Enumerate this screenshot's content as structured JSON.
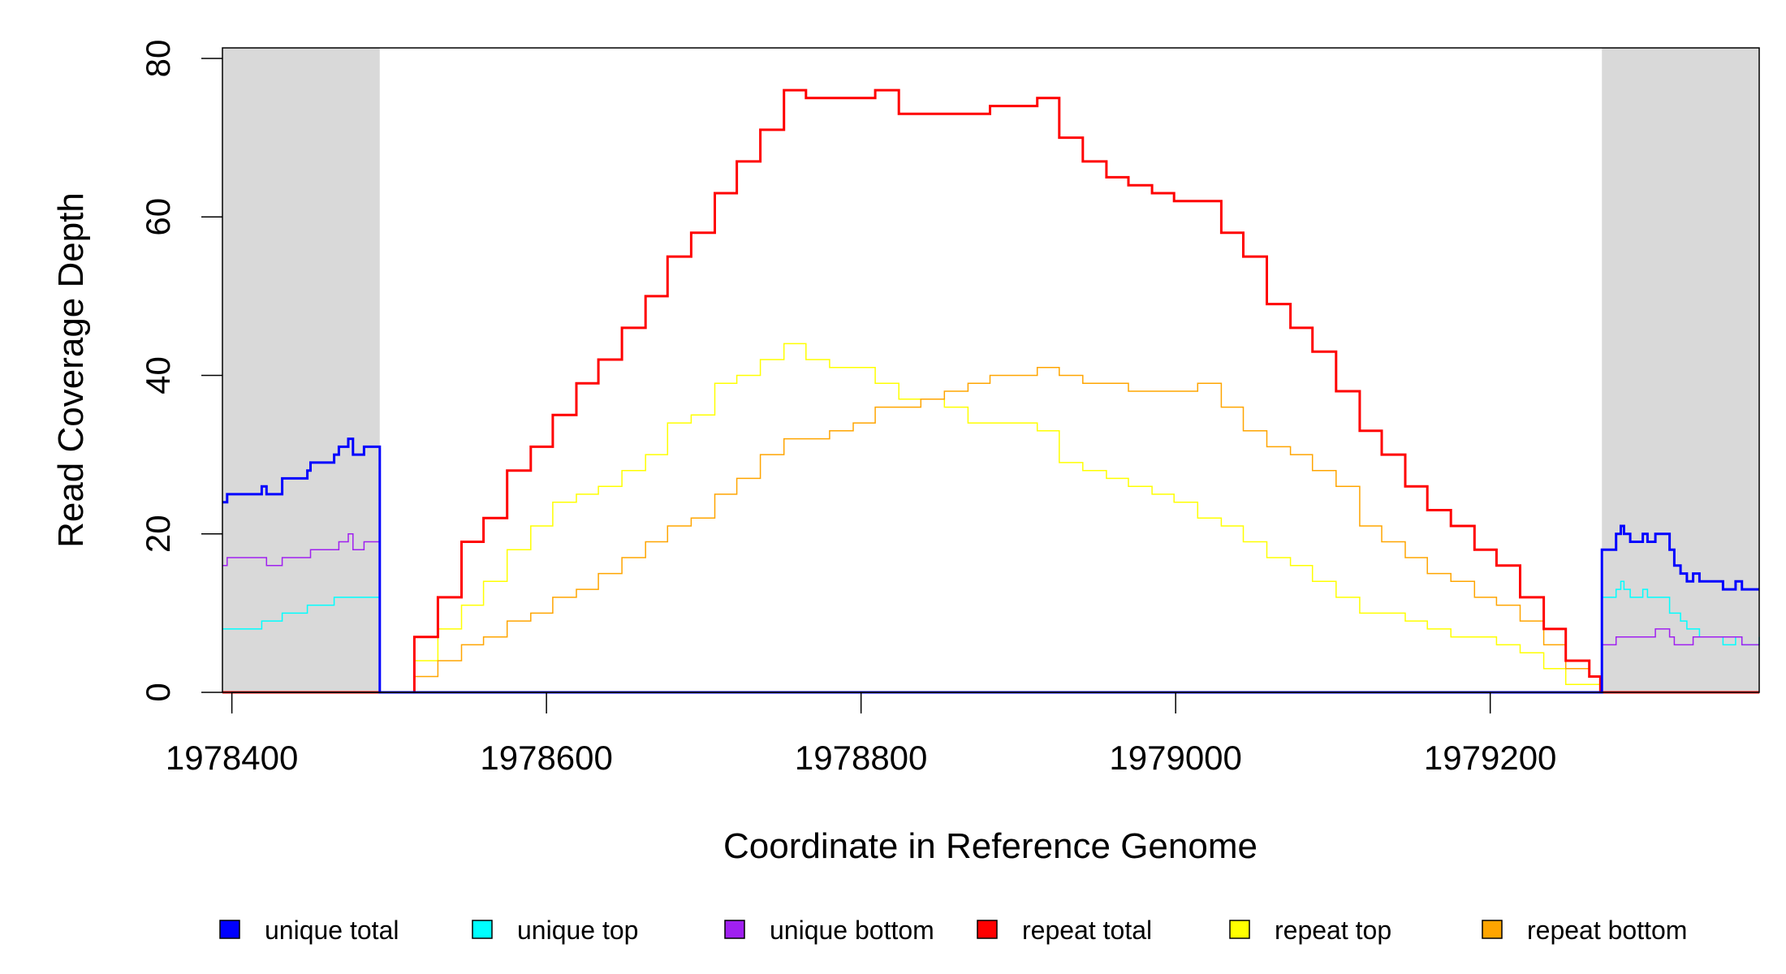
{
  "chart_data": {
    "type": "line",
    "title": "",
    "xlabel": "Coordinate in Reference Genome",
    "ylabel": "Read Coverage Depth",
    "xlim": [
      1978394,
      1979371
    ],
    "ylim": [
      0,
      80
    ],
    "x_ticks": [
      1978400,
      1978600,
      1978800,
      1979000,
      1979200
    ],
    "x_tick_labels": [
      "1978400",
      "1978600",
      "1978800",
      "1979000",
      "1979200"
    ],
    "y_ticks": [
      0,
      20,
      40,
      60,
      80
    ],
    "y_tick_labels": [
      "0",
      "20",
      "40",
      "60",
      "80"
    ],
    "grid": false,
    "legend_position": "bottom",
    "shaded_regions": [
      [
        1978394,
        1978494
      ],
      [
        1979271,
        1979371
      ]
    ],
    "colors": {
      "shade": "#d9d9d9"
    },
    "series": [
      {
        "name": "unique total",
        "color": "#0000ff",
        "width": 3,
        "points": [
          [
            1978394,
            24
          ],
          [
            1978397,
            25
          ],
          [
            1978419,
            26
          ],
          [
            1978422,
            25
          ],
          [
            1978432,
            27
          ],
          [
            1978448,
            28
          ],
          [
            1978450,
            29
          ],
          [
            1978465,
            30
          ],
          [
            1978468,
            31
          ],
          [
            1978474,
            32
          ],
          [
            1978477,
            30
          ],
          [
            1978484,
            31
          ],
          [
            1978494,
            0
          ],
          [
            1979271,
            18
          ],
          [
            1979280,
            20
          ],
          [
            1979283,
            21
          ],
          [
            1979285,
            20
          ],
          [
            1979289,
            19
          ],
          [
            1979297,
            20
          ],
          [
            1979300,
            19
          ],
          [
            1979305,
            20
          ],
          [
            1979314,
            18
          ],
          [
            1979317,
            16
          ],
          [
            1979321,
            15
          ],
          [
            1979325,
            14
          ],
          [
            1979329,
            15
          ],
          [
            1979333,
            14
          ],
          [
            1979348,
            13
          ],
          [
            1979356,
            14
          ],
          [
            1979360,
            13
          ],
          [
            1979371,
            13
          ]
        ]
      },
      {
        "name": "unique top",
        "color": "#00ffff",
        "width": 1.5,
        "points": [
          [
            1978394,
            8
          ],
          [
            1978419,
            9
          ],
          [
            1978432,
            10
          ],
          [
            1978448,
            11
          ],
          [
            1978465,
            12
          ],
          [
            1978494,
            0
          ],
          [
            1979271,
            12
          ],
          [
            1979280,
            13
          ],
          [
            1979283,
            14
          ],
          [
            1979285,
            13
          ],
          [
            1979289,
            12
          ],
          [
            1979297,
            13
          ],
          [
            1979300,
            12
          ],
          [
            1979314,
            10
          ],
          [
            1979321,
            9
          ],
          [
            1979325,
            8
          ],
          [
            1979333,
            7
          ],
          [
            1979348,
            6
          ],
          [
            1979356,
            7
          ],
          [
            1979360,
            6
          ],
          [
            1979371,
            7
          ]
        ]
      },
      {
        "name": "unique bottom",
        "color": "#a020f0",
        "width": 1.5,
        "points": [
          [
            1978394,
            16
          ],
          [
            1978397,
            17
          ],
          [
            1978422,
            16
          ],
          [
            1978432,
            17
          ],
          [
            1978450,
            18
          ],
          [
            1978468,
            19
          ],
          [
            1978474,
            20
          ],
          [
            1978477,
            18
          ],
          [
            1978484,
            19
          ],
          [
            1978494,
            0
          ],
          [
            1979271,
            6
          ],
          [
            1979280,
            7
          ],
          [
            1979305,
            8
          ],
          [
            1979314,
            7
          ],
          [
            1979317,
            6
          ],
          [
            1979329,
            7
          ],
          [
            1979360,
            6
          ],
          [
            1979371,
            6
          ]
        ]
      },
      {
        "name": "repeat total",
        "color": "#ff0000",
        "width": 3,
        "points": [
          [
            1978394,
            0
          ],
          [
            1978505,
            0
          ],
          [
            1978516,
            7
          ],
          [
            1978531,
            12
          ],
          [
            1978546,
            19
          ],
          [
            1978560,
            22
          ],
          [
            1978575,
            28
          ],
          [
            1978590,
            31
          ],
          [
            1978604,
            35
          ],
          [
            1978619,
            39
          ],
          [
            1978633,
            42
          ],
          [
            1978648,
            46
          ],
          [
            1978663,
            50
          ],
          [
            1978677,
            55
          ],
          [
            1978692,
            58
          ],
          [
            1978707,
            63
          ],
          [
            1978721,
            67
          ],
          [
            1978736,
            71
          ],
          [
            1978751,
            76
          ],
          [
            1978765,
            75
          ],
          [
            1978780,
            75
          ],
          [
            1978795,
            75
          ],
          [
            1978809,
            76
          ],
          [
            1978824,
            73
          ],
          [
            1978838,
            73
          ],
          [
            1978853,
            73
          ],
          [
            1978868,
            73
          ],
          [
            1978882,
            74
          ],
          [
            1978897,
            74
          ],
          [
            1978912,
            75
          ],
          [
            1978926,
            70
          ],
          [
            1978941,
            67
          ],
          [
            1978956,
            65
          ],
          [
            1978970,
            64
          ],
          [
            1978985,
            63
          ],
          [
            1978999,
            62
          ],
          [
            1979014,
            62
          ],
          [
            1979029,
            58
          ],
          [
            1979043,
            55
          ],
          [
            1979058,
            49
          ],
          [
            1979073,
            46
          ],
          [
            1979087,
            43
          ],
          [
            1979102,
            38
          ],
          [
            1979117,
            33
          ],
          [
            1979131,
            30
          ],
          [
            1979146,
            26
          ],
          [
            1979160,
            23
          ],
          [
            1979175,
            21
          ],
          [
            1979190,
            18
          ],
          [
            1979204,
            16
          ],
          [
            1979219,
            12
          ],
          [
            1979234,
            8
          ],
          [
            1979248,
            4
          ],
          [
            1979263,
            2
          ],
          [
            1979270,
            0
          ],
          [
            1979371,
            0
          ]
        ]
      },
      {
        "name": "repeat top",
        "color": "#ffff00",
        "width": 1.5,
        "points": [
          [
            1978505,
            0
          ],
          [
            1978516,
            4
          ],
          [
            1978531,
            8
          ],
          [
            1978546,
            11
          ],
          [
            1978560,
            14
          ],
          [
            1978575,
            18
          ],
          [
            1978590,
            21
          ],
          [
            1978604,
            24
          ],
          [
            1978619,
            25
          ],
          [
            1978633,
            26
          ],
          [
            1978648,
            28
          ],
          [
            1978663,
            30
          ],
          [
            1978677,
            34
          ],
          [
            1978692,
            35
          ],
          [
            1978707,
            39
          ],
          [
            1978721,
            40
          ],
          [
            1978736,
            42
          ],
          [
            1978751,
            44
          ],
          [
            1978765,
            42
          ],
          [
            1978780,
            41
          ],
          [
            1978795,
            41
          ],
          [
            1978809,
            39
          ],
          [
            1978824,
            37
          ],
          [
            1978838,
            37
          ],
          [
            1978853,
            36
          ],
          [
            1978868,
            34
          ],
          [
            1978882,
            34
          ],
          [
            1978897,
            34
          ],
          [
            1978912,
            33
          ],
          [
            1978926,
            29
          ],
          [
            1978941,
            28
          ],
          [
            1978956,
            27
          ],
          [
            1978970,
            26
          ],
          [
            1978985,
            25
          ],
          [
            1978999,
            24
          ],
          [
            1979014,
            22
          ],
          [
            1979029,
            21
          ],
          [
            1979043,
            19
          ],
          [
            1979058,
            17
          ],
          [
            1979073,
            16
          ],
          [
            1979087,
            14
          ],
          [
            1979102,
            12
          ],
          [
            1979117,
            10
          ],
          [
            1979131,
            10
          ],
          [
            1979146,
            9
          ],
          [
            1979160,
            8
          ],
          [
            1979175,
            7
          ],
          [
            1979190,
            7
          ],
          [
            1979204,
            6
          ],
          [
            1979219,
            5
          ],
          [
            1979234,
            3
          ],
          [
            1979248,
            1
          ],
          [
            1979263,
            1
          ],
          [
            1979270,
            0
          ]
        ]
      },
      {
        "name": "repeat bottom",
        "color": "#ffa500",
        "width": 1.5,
        "points": [
          [
            1978394,
            0
          ],
          [
            1978505,
            0
          ],
          [
            1978516,
            2
          ],
          [
            1978531,
            4
          ],
          [
            1978546,
            6
          ],
          [
            1978560,
            7
          ],
          [
            1978575,
            9
          ],
          [
            1978590,
            10
          ],
          [
            1978604,
            12
          ],
          [
            1978619,
            13
          ],
          [
            1978633,
            15
          ],
          [
            1978648,
            17
          ],
          [
            1978663,
            19
          ],
          [
            1978677,
            21
          ],
          [
            1978692,
            22
          ],
          [
            1978707,
            25
          ],
          [
            1978721,
            27
          ],
          [
            1978736,
            30
          ],
          [
            1978751,
            32
          ],
          [
            1978765,
            32
          ],
          [
            1978780,
            33
          ],
          [
            1978795,
            34
          ],
          [
            1978809,
            36
          ],
          [
            1978824,
            36
          ],
          [
            1978838,
            37
          ],
          [
            1978853,
            38
          ],
          [
            1978868,
            39
          ],
          [
            1978882,
            40
          ],
          [
            1978897,
            40
          ],
          [
            1978912,
            41
          ],
          [
            1978926,
            40
          ],
          [
            1978941,
            39
          ],
          [
            1978956,
            39
          ],
          [
            1978970,
            38
          ],
          [
            1978985,
            38
          ],
          [
            1978999,
            38
          ],
          [
            1979014,
            39
          ],
          [
            1979029,
            36
          ],
          [
            1979043,
            33
          ],
          [
            1979058,
            31
          ],
          [
            1979073,
            30
          ],
          [
            1979087,
            28
          ],
          [
            1979102,
            26
          ],
          [
            1979117,
            21
          ],
          [
            1979131,
            19
          ],
          [
            1979146,
            17
          ],
          [
            1979160,
            15
          ],
          [
            1979175,
            14
          ],
          [
            1979190,
            12
          ],
          [
            1979204,
            11
          ],
          [
            1979219,
            9
          ],
          [
            1979234,
            6
          ],
          [
            1979248,
            3
          ],
          [
            1979263,
            2
          ],
          [
            1979270,
            0
          ],
          [
            1979371,
            0
          ]
        ]
      }
    ]
  }
}
